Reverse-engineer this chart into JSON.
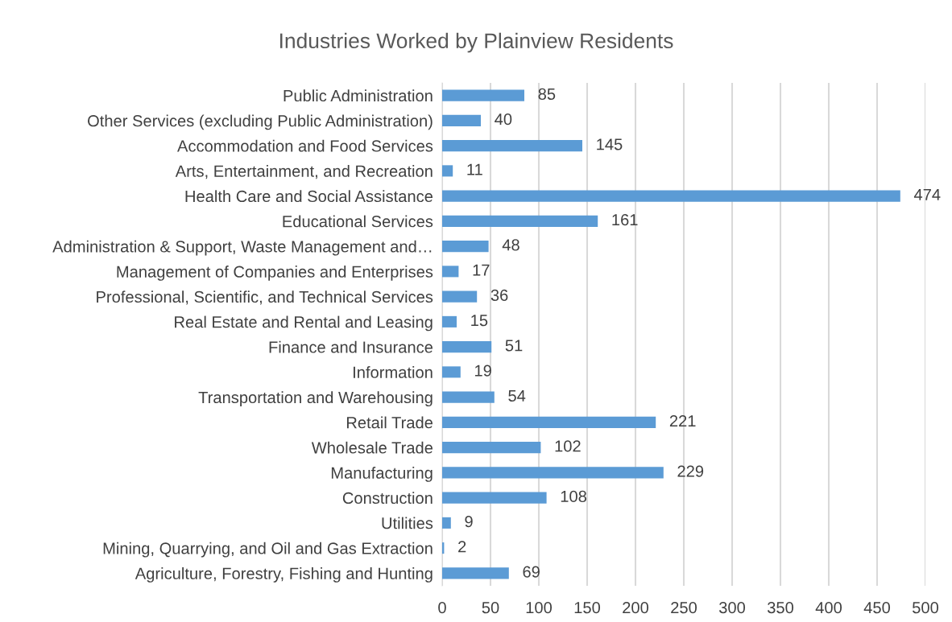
{
  "chart_data": {
    "type": "bar",
    "orientation": "horizontal",
    "title": "Industries Worked by Plainview Residents",
    "categories": [
      "Public Administration",
      "Other Services (excluding Public Administration)",
      "Accommodation and Food Services",
      "Arts, Entertainment, and Recreation",
      "Health Care and Social Assistance",
      "Educational Services",
      "Administration & Support, Waste Management and…",
      "Management of Companies and Enterprises",
      "Professional, Scientific, and Technical Services",
      "Real Estate and Rental and Leasing",
      "Finance and Insurance",
      "Information",
      "Transportation and Warehousing",
      "Retail Trade",
      "Wholesale Trade",
      "Manufacturing",
      "Construction",
      "Utilities",
      "Mining, Quarrying, and Oil and Gas Extraction",
      "Agriculture, Forestry, Fishing and Hunting"
    ],
    "values": [
      85,
      40,
      145,
      11,
      474,
      161,
      48,
      17,
      36,
      15,
      51,
      19,
      54,
      221,
      102,
      229,
      108,
      9,
      2,
      69
    ],
    "color": "#5b9bd5",
    "xlim": [
      0,
      500
    ],
    "xticks": [
      0,
      50,
      100,
      150,
      200,
      250,
      300,
      350,
      400,
      450,
      500
    ],
    "grid": "x",
    "data_labels": true
  }
}
